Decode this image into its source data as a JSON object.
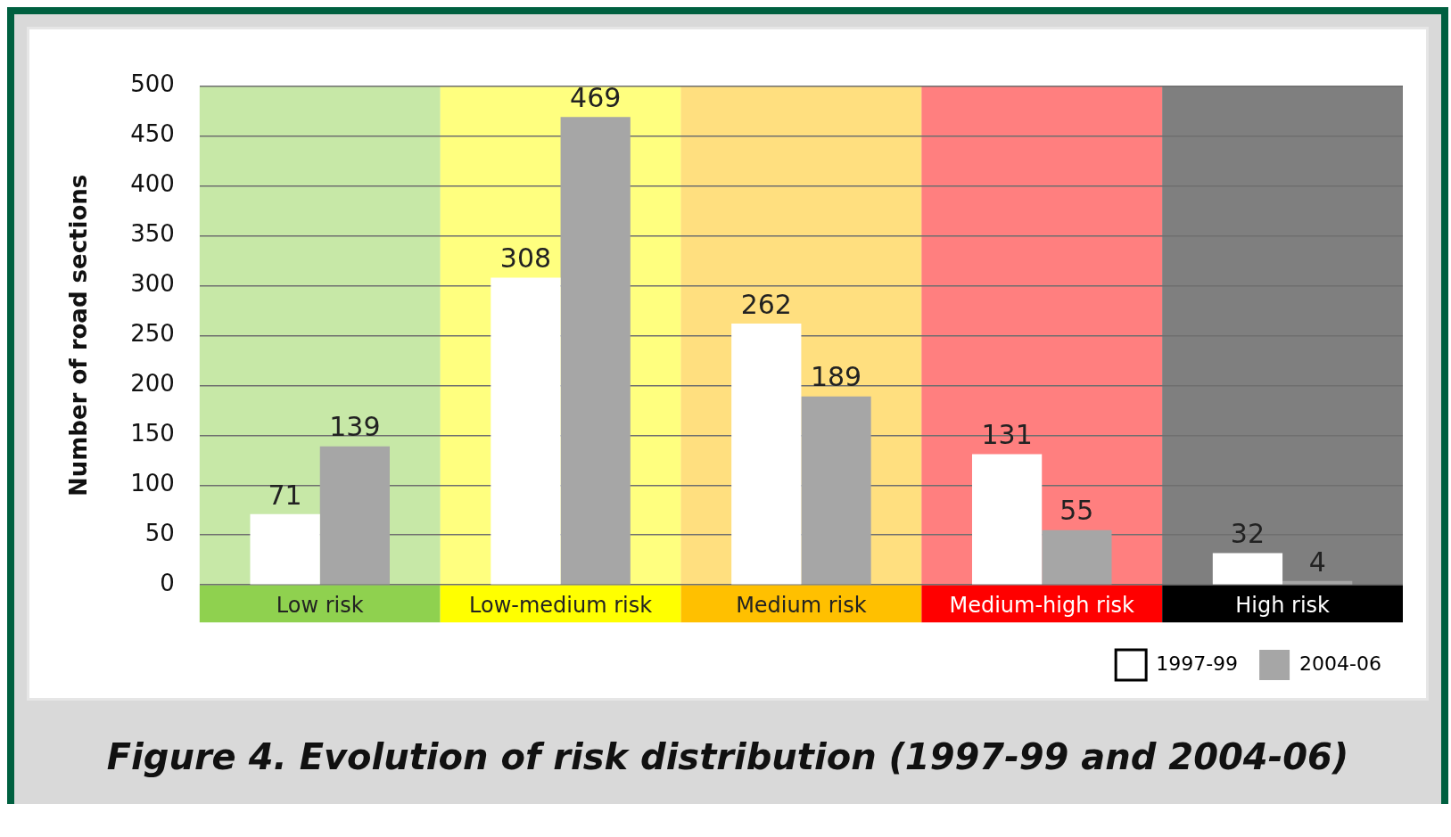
{
  "chart_data": {
    "type": "bar",
    "title": "Figure 4. Evolution of risk distribution (1997-99 and 2004-06)",
    "ylabel": "Number of road sections",
    "categories": [
      "Low risk",
      "Low-medium risk",
      "Medium risk",
      "Medium-high risk",
      "High risk"
    ],
    "series": [
      {
        "name": "1997-99",
        "color": "#ffffff",
        "values": [
          71,
          308,
          262,
          131,
          32
        ]
      },
      {
        "name": "2004-06",
        "color": "#a6a6a6",
        "values": [
          139,
          469,
          189,
          55,
          4
        ]
      }
    ],
    "ylim": [
      0,
      500
    ],
    "yticks": [
      0,
      50,
      100,
      150,
      200,
      250,
      300,
      350,
      400,
      450,
      500
    ],
    "grid": "y",
    "legend": "bottom right",
    "data_labels": true,
    "bands": [
      {
        "axis": "x",
        "from": "Low risk",
        "to": "Low risk",
        "color": "#8fd14f"
      },
      {
        "axis": "x",
        "from": "Low-medium risk",
        "to": "Low-medium risk",
        "color": "#ffff00"
      },
      {
        "axis": "x",
        "from": "Medium risk",
        "to": "Medium risk",
        "color": "#ffc000"
      },
      {
        "axis": "x",
        "from": "Medium-high risk",
        "to": "Medium-high risk",
        "color": "#ff0000"
      },
      {
        "axis": "x",
        "from": "High risk",
        "to": "High risk",
        "color": "#000000"
      }
    ]
  }
}
